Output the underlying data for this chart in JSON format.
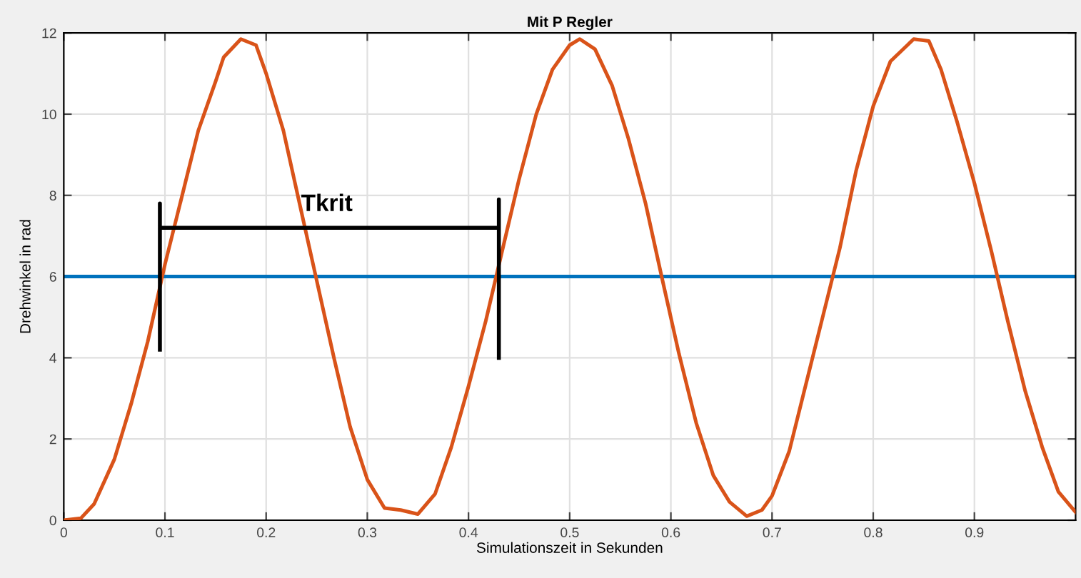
{
  "chart_data": {
    "type": "line",
    "title": "Mit P Regler",
    "xlabel": "Simulationszeit in Sekunden",
    "ylabel": "Drehwinkel in rad",
    "xlim": [
      0,
      1
    ],
    "xticks": [
      0,
      0.1,
      0.2,
      0.3,
      0.4,
      0.5,
      0.6,
      0.7,
      0.8,
      0.9
    ],
    "ylim": [
      0,
      12
    ],
    "yticks": [
      0,
      2,
      4,
      6,
      8,
      10,
      12
    ],
    "grid": true,
    "series": [
      {
        "color": "#d95319",
        "x": [
          0,
          0.017,
          0.03,
          0.05,
          0.067,
          0.083,
          0.1,
          0.117,
          0.133,
          0.15,
          0.158,
          0.175,
          0.19,
          0.2,
          0.217,
          0.233,
          0.25,
          0.267,
          0.283,
          0.3,
          0.317,
          0.333,
          0.35,
          0.367,
          0.383,
          0.4,
          0.417,
          0.433,
          0.45,
          0.467,
          0.483,
          0.5,
          0.51,
          0.525,
          0.542,
          0.558,
          0.575,
          0.59,
          0.608,
          0.625,
          0.642,
          0.658,
          0.675,
          0.69,
          0.7,
          0.717,
          0.733,
          0.75,
          0.767,
          0.783,
          0.8,
          0.817,
          0.84,
          0.855,
          0.867,
          0.883,
          0.9,
          0.917,
          0.933,
          0.95,
          0.967,
          0.983,
          1.0
        ],
        "values": [
          0,
          0.05,
          0.4,
          1.5,
          2.9,
          4.4,
          6.3,
          8.0,
          9.6,
          10.8,
          11.4,
          11.85,
          11.7,
          11.0,
          9.6,
          7.8,
          5.9,
          4.0,
          2.3,
          1.0,
          0.3,
          0.25,
          0.15,
          0.65,
          1.8,
          3.3,
          4.9,
          6.6,
          8.4,
          10.0,
          11.1,
          11.7,
          11.85,
          11.6,
          10.7,
          9.4,
          7.8,
          6.1,
          4.1,
          2.4,
          1.1,
          0.45,
          0.1,
          0.25,
          0.6,
          1.7,
          3.3,
          5.0,
          6.7,
          8.6,
          10.2,
          11.3,
          11.85,
          11.8,
          11.1,
          9.8,
          8.3,
          6.6,
          4.9,
          3.2,
          1.8,
          0.7,
          0.2
        ]
      },
      {
        "color": "#000000",
        "x": [
          0.095,
          0.095,
          0.095,
          0.43,
          0.43,
          0.43
        ],
        "values": [
          4.2,
          7.8,
          7.2,
          7.2,
          7.9,
          4.0
        ]
      }
    ],
    "ref_lines": [
      {
        "axis": "y",
        "value": 6,
        "color": "#0072bd"
      }
    ],
    "annotations": [
      {
        "text": "Tkrit",
        "x": 0.26,
        "y": 7.2
      }
    ]
  }
}
